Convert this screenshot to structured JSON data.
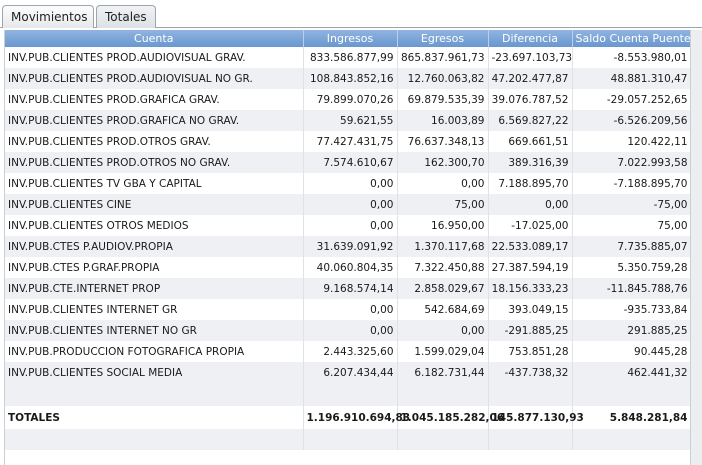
{
  "tabs": [
    {
      "label": "Movimientos"
    },
    {
      "label": "Totales"
    }
  ],
  "columns": [
    "Cuenta",
    "Ingresos",
    "Egresos",
    "Diferencia",
    "Saldo Cuenta Puente"
  ],
  "rows": [
    [
      "INV.PUB.CLIENTES PROD.AUDIOVISUAL GRAV.",
      "833.586.877,99",
      "865.837.961,73",
      "-23.697.103,73",
      "-8.553.980,01"
    ],
    [
      "INV.PUB.CLIENTES PROD.AUDIOVISUAL NO GR.",
      "108.843.852,16",
      "12.760.063,82",
      "47.202.477,87",
      "48.881.310,47"
    ],
    [
      "INV.PUB.CLIENTES PROD.GRAFICA GRAV.",
      "79.899.070,26",
      "69.879.535,39",
      "39.076.787,52",
      "-29.057.252,65"
    ],
    [
      "INV.PUB.CLIENTES PROD.GRAFICA NO GRAV.",
      "59.621,55",
      "16.003,89",
      "6.569.827,22",
      "-6.526.209,56"
    ],
    [
      "INV.PUB.CLIENTES PROD.OTROS GRAV.",
      "77.427.431,75",
      "76.637.348,13",
      "669.661,51",
      "120.422,11"
    ],
    [
      "INV.PUB.CLIENTES PROD.OTROS NO GRAV.",
      "7.574.610,67",
      "162.300,70",
      "389.316,39",
      "7.022.993,58"
    ],
    [
      "INV.PUB.CLIENTES TV GBA Y CAPITAL",
      "0,00",
      "0,00",
      "7.188.895,70",
      "-7.188.895,70"
    ],
    [
      "INV.PUB.CLIENTES CINE",
      "0,00",
      "75,00",
      "0,00",
      "-75,00"
    ],
    [
      "INV.PUB.CLIENTES OTROS MEDIOS",
      "0,00",
      "16.950,00",
      "-17.025,00",
      "75,00"
    ],
    [
      "INV.PUB.CTES P.AUDIOV.PROPIA",
      "31.639.091,92",
      "1.370.117,68",
      "22.533.089,17",
      "7.735.885,07"
    ],
    [
      "INV.PUB.CTES P.GRAF.PROPIA",
      "40.060.804,35",
      "7.322.450,88",
      "27.387.594,19",
      "5.350.759,28"
    ],
    [
      "INV.PUB.CTE.INTERNET PROP",
      "9.168.574,14",
      "2.858.029,67",
      "18.156.333,23",
      "-11.845.788,76"
    ],
    [
      "INV.PUB.CLIENTES INTERNET GR",
      "0,00",
      "542.684,69",
      "393.049,15",
      "-935.733,84"
    ],
    [
      "INV.PUB.CLIENTES INTERNET NO GR",
      "0,00",
      "0,00",
      "-291.885,25",
      "291.885,25"
    ],
    [
      "INV.PUB.PRODUCCION FOTOGRAFICA PROPIA",
      "2.443.325,60",
      "1.599.029,04",
      "753.851,28",
      "90.445,28"
    ],
    [
      "INV.PUB.CLIENTES SOCIAL MEDIA",
      "6.207.434,44",
      "6.182.731,44",
      "-437.738,32",
      "462.441,32"
    ]
  ],
  "totals": [
    "TOTALES",
    "1.196.910.694,83",
    "1.045.185.282,06",
    "145.877.130,93",
    "5.848.281,84"
  ]
}
